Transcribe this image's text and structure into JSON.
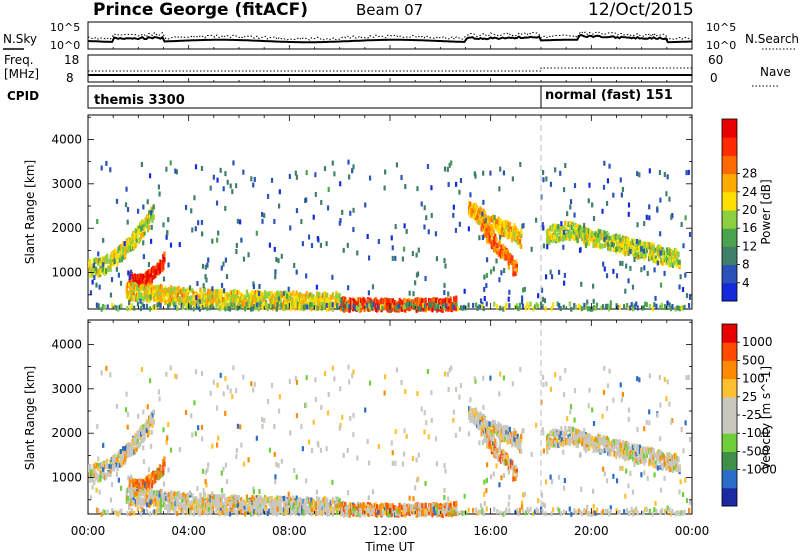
{
  "header": {
    "station": "Prince George (fitACF)",
    "beam": "Beam 07",
    "date": "12/Oct/2015"
  },
  "top_panel": {
    "left_label": "N.Sky",
    "right_label": "N.Search",
    "left_ticks": [
      "10^5",
      "10^0"
    ],
    "right_ticks": [
      "10^5",
      "10^0"
    ]
  },
  "freq_panel": {
    "left_label_1": "Freq.",
    "left_label_2": "[MHz]",
    "left_ticks": [
      "18",
      "8"
    ],
    "right_ticks": [
      "60",
      "0"
    ],
    "right_label": "Nave"
  },
  "cpid": {
    "label": "CPID",
    "segments": [
      {
        "name": "themis 3300",
        "start_hour": 0
      },
      {
        "name": "normal (fast) 151",
        "start_hour": 18
      }
    ]
  },
  "chart_data": [
    {
      "type": "heatmap",
      "title": "Power",
      "xlabel": "",
      "ylabel": "Slant Range [km]",
      "x_ticks": [
        "00:00",
        "04:00",
        "08:00",
        "12:00",
        "16:00",
        "20:00",
        "00:00"
      ],
      "xlim_hours": [
        0,
        24
      ],
      "ylim": [
        180,
        4550
      ],
      "y_ticks": [
        1000,
        2000,
        3000,
        4000
      ],
      "colorbar": {
        "label": "Power [dB]",
        "min": 0,
        "max": 32,
        "ticks": [
          "4",
          "8",
          "12",
          "16",
          "20",
          "24",
          "28"
        ],
        "colors": [
          "#1428dc",
          "#2a52b8",
          "#3f7f6a",
          "#4aa24d",
          "#8cd042",
          "#ffe000",
          "#ffaa00",
          "#ff6a00",
          "#ff2a00",
          "#e80000"
        ]
      },
      "features": [
        {
          "name": "morning arc",
          "t": [
            0.0,
            0.6,
            1.2,
            1.8,
            2.3,
            2.6
          ],
          "r": [
            1150,
            1200,
            1450,
            1800,
            2150,
            2500
          ],
          "level": 16
        },
        {
          "name": "intense blob",
          "t": [
            1.6,
            2.0,
            2.4,
            2.8,
            3.0
          ],
          "r": [
            900,
            850,
            950,
            1150,
            1350
          ],
          "level": 28
        },
        {
          "name": "low band",
          "t": [
            1.5,
            4.0,
            6.0,
            8.0,
            10.0
          ],
          "r": [
            650,
            500,
            450,
            420,
            400
          ],
          "level": 18
        },
        {
          "name": "near-range strip",
          "t": [
            10.0,
            12.0,
            14.0,
            14.6
          ],
          "r": [
            330,
            300,
            320,
            350
          ],
          "level": 26
        },
        {
          "name": "afternoon arc",
          "t": [
            15.1,
            15.6,
            16.2,
            16.9,
            17.2
          ],
          "r": [
            2550,
            2300,
            2100,
            1950,
            1800
          ],
          "level": 20
        },
        {
          "name": "afternoon branch",
          "t": [
            15.6,
            16.3,
            17.0
          ],
          "r": [
            2100,
            1600,
            1100
          ],
          "level": 24
        },
        {
          "name": "evening band",
          "t": [
            18.2,
            19.0,
            20.0,
            21.0,
            22.0,
            23.5
          ],
          "r": [
            1900,
            2000,
            1850,
            1700,
            1550,
            1350
          ],
          "level": 16
        }
      ]
    },
    {
      "type": "heatmap",
      "title": "Velocity",
      "xlabel": "Time UT",
      "ylabel": "Slant Range [km]",
      "x_ticks": [
        "00:00",
        "04:00",
        "08:00",
        "12:00",
        "16:00",
        "20:00",
        "00:00"
      ],
      "xlim_hours": [
        0,
        24
      ],
      "ylim": [
        180,
        4550
      ],
      "y_ticks": [
        1000,
        2000,
        3000,
        4000
      ],
      "colorbar": {
        "label": "Velocity [m s^-1]",
        "ticks": [
          "1000",
          "500",
          "100",
          "25",
          "-25",
          "-100",
          "-500",
          "-1000"
        ],
        "colors": [
          "#1a2aa0",
          "#2b6cc8",
          "#3f8f4a",
          "#6fcf3a",
          "#c8c8c0",
          "#c8c8c0",
          "#ffc030",
          "#ff8a00",
          "#ff4a00",
          "#e60000"
        ]
      }
    }
  ]
}
